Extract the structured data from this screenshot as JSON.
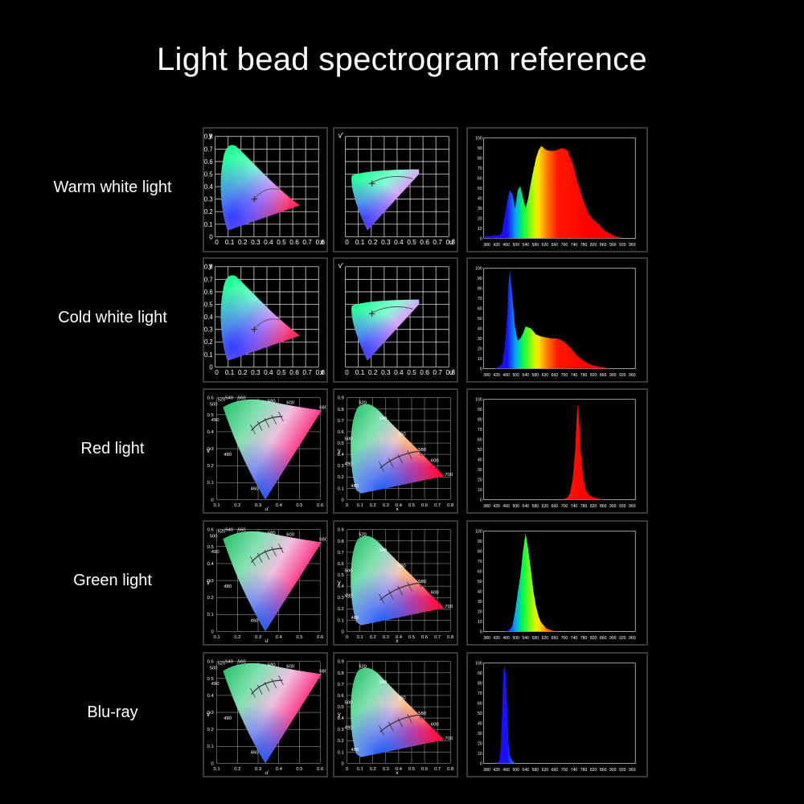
{
  "title": "Light bead spectrogram reference",
  "colors": {
    "background": "#000000",
    "text": "#ffffff",
    "grid": "#ffffff",
    "frame": "#3a3a3a"
  },
  "xy_chart": {
    "xlabel": "x",
    "ylabel": "y",
    "xticks": [
      "0",
      "0.1",
      "0.2",
      "0.3",
      "0.4",
      "0.5",
      "0.6",
      "0.7",
      "0.8"
    ],
    "yticks": [
      "0",
      "0.1",
      "0.2",
      "0.3",
      "0.4",
      "0.5",
      "0.6",
      "0.7",
      "0.8"
    ]
  },
  "uv_chart": {
    "xlabel": "u'",
    "ylabel": "v'",
    "xticks": [
      "0",
      "0.1",
      "0.2",
      "0.3",
      "0.4",
      "0.5",
      "0.6",
      "0.7",
      "0.8"
    ]
  },
  "upvp_chart": {
    "xlabel": "u'",
    "ylabel": "v'",
    "xticks": [
      "0.1",
      "0.2",
      "0.3",
      "0.4",
      "0.5",
      "0.6"
    ],
    "yticks": [
      "0",
      "0.1",
      "0.2",
      "0.3",
      "0.4",
      "0.5",
      "0.6"
    ],
    "wavelength_labels": [
      "520",
      "540",
      "560",
      "580",
      "600",
      "680",
      "500",
      "490",
      "480",
      "460"
    ]
  },
  "xy1931_chart": {
    "xlabel": "x",
    "ylabel": "y",
    "xticks": [
      "0",
      "0.1",
      "0.2",
      "0.3",
      "0.4",
      "0.5",
      "0.6",
      "0.7",
      "0.8"
    ],
    "yticks": [
      "0",
      "0.1",
      "0.2",
      "0.3",
      "0.4",
      "0.5",
      "0.6",
      "0.7",
      "0.8",
      "0.9"
    ],
    "wavelength_labels": [
      "520",
      "540",
      "560",
      "580",
      "600",
      "700",
      "500",
      "490",
      "480"
    ]
  },
  "spectrum_axis": {
    "xticks": [
      "380",
      "420",
      "460",
      "500",
      "540",
      "580",
      "620",
      "660",
      "700",
      "740",
      "780",
      "820",
      "860",
      "900",
      "920",
      "960"
    ],
    "yticks": [
      "0",
      "10",
      "20",
      "30",
      "40",
      "50",
      "60",
      "70",
      "80",
      "90",
      "100"
    ]
  },
  "rows": [
    {
      "label": "Warm white light",
      "diagram_style": "xy_uv"
    },
    {
      "label": "Cold white light",
      "diagram_style": "xy_uv"
    },
    {
      "label": "Red light",
      "diagram_style": "labeled"
    },
    {
      "label": "Green light",
      "diagram_style": "labeled"
    },
    {
      "label": "Blu-ray",
      "diagram_style": "labeled"
    }
  ],
  "chart_data": [
    {
      "type": "area",
      "name": "Warm white light",
      "x": [
        380,
        400,
        420,
        440,
        450,
        460,
        470,
        480,
        490,
        500,
        510,
        520,
        530,
        540,
        550,
        560,
        570,
        580,
        590,
        600,
        610,
        620,
        640,
        660,
        680,
        700,
        720,
        740,
        760,
        780,
        800,
        820,
        840,
        860,
        880,
        900
      ],
      "values": [
        2,
        2,
        3,
        3,
        6,
        22,
        38,
        48,
        44,
        30,
        48,
        52,
        40,
        30,
        40,
        55,
        68,
        80,
        88,
        92,
        90,
        88,
        87,
        88,
        90,
        88,
        75,
        55,
        38,
        25,
        18,
        14,
        8,
        5,
        2,
        1
      ],
      "ylim": [
        0,
        100
      ]
    },
    {
      "type": "area",
      "name": "Cold white light",
      "x": [
        380,
        420,
        440,
        450,
        460,
        470,
        475,
        480,
        490,
        500,
        510,
        520,
        530,
        540,
        560,
        580,
        600,
        620,
        640,
        660,
        680,
        700,
        720,
        740,
        760,
        780,
        800,
        820,
        840,
        860,
        880
      ],
      "values": [
        0,
        0,
        2,
        5,
        20,
        55,
        85,
        98,
        70,
        40,
        28,
        30,
        35,
        42,
        40,
        34,
        32,
        31,
        30,
        30,
        28,
        24,
        18,
        12,
        8,
        5,
        3,
        2,
        1,
        0,
        0
      ],
      "ylim": [
        0,
        100
      ]
    },
    {
      "type": "area",
      "name": "Red light",
      "x": [
        380,
        640,
        680,
        700,
        710,
        720,
        730,
        735,
        740,
        745,
        750,
        760,
        770,
        780,
        800,
        820,
        840,
        960
      ],
      "values": [
        0,
        0,
        0,
        2,
        6,
        20,
        50,
        80,
        96,
        80,
        50,
        22,
        10,
        5,
        2,
        1,
        0,
        0
      ],
      "ylim": [
        0,
        100
      ]
    },
    {
      "type": "area",
      "name": "Green light",
      "x": [
        380,
        460,
        480,
        490,
        500,
        510,
        520,
        530,
        540,
        550,
        560,
        570,
        580,
        590,
        600,
        620,
        640,
        660,
        700
      ],
      "values": [
        0,
        0,
        2,
        6,
        20,
        38,
        55,
        80,
        98,
        82,
        62,
        40,
        25,
        15,
        9,
        3,
        1,
        0,
        0
      ],
      "ylim": [
        0,
        100
      ]
    },
    {
      "type": "area",
      "name": "Blu-ray",
      "x": [
        380,
        430,
        440,
        445,
        450,
        455,
        460,
        465,
        470,
        475,
        480,
        490,
        500,
        960
      ],
      "values": [
        0,
        0,
        3,
        15,
        50,
        90,
        99,
        85,
        55,
        20,
        8,
        2,
        0,
        0
      ],
      "ylim": [
        0,
        100
      ]
    }
  ]
}
